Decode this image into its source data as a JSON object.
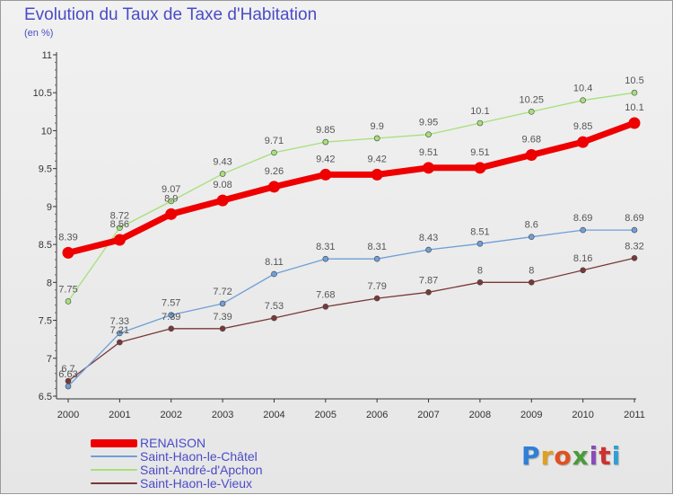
{
  "title": "Evolution du Taux de Taxe d'Habitation",
  "unit": "(en %)",
  "logo": {
    "text": "Proxiti",
    "colors": [
      "#2f7fd6",
      "#e0a020",
      "#e05020",
      "#4a9b3a",
      "#8a4ab8",
      "#d03030",
      "#2f9fd6"
    ]
  },
  "chart_data": {
    "type": "line",
    "x": [
      "2000",
      "2001",
      "2002",
      "2003",
      "2004",
      "2005",
      "2006",
      "2007",
      "2008",
      "2009",
      "2010",
      "2011"
    ],
    "ylim": [
      6.5,
      11
    ],
    "yticks": [
      "6.5",
      "7",
      "7.5",
      "8",
      "8.5",
      "9",
      "9.5",
      "10",
      "10.5",
      "11"
    ],
    "grid": false,
    "legend_position": "bottom-left",
    "series": [
      {
        "name": "RENAISON",
        "color": "#ee0000",
        "values": [
          8.39,
          8.56,
          8.9,
          9.08,
          9.26,
          9.42,
          9.42,
          9.51,
          9.51,
          9.68,
          9.85,
          10.1
        ],
        "labels": [
          "8.39",
          "8.56",
          "8.9",
          "9.08",
          "9.26",
          "9.42",
          "9.42",
          "9.51",
          "9.51",
          "9.68",
          "9.85",
          "10.1"
        ]
      },
      {
        "name": "Saint-Haon-le-Châtel",
        "color": "#6f9fd8",
        "values": [
          6.63,
          7.33,
          7.57,
          7.72,
          8.11,
          8.31,
          8.31,
          8.43,
          8.51,
          8.6,
          8.69,
          8.69
        ],
        "labels": [
          "6.63",
          "7.33",
          "7.57",
          "7.72",
          "8.11",
          "8.31",
          "8.31",
          "8.43",
          "8.51",
          "8.6",
          "8.69",
          "8.69"
        ]
      },
      {
        "name": "Saint-André-d'Apchon",
        "color": "#a6e07a",
        "values": [
          7.75,
          8.72,
          9.07,
          9.43,
          9.71,
          9.85,
          9.9,
          9.95,
          10.1,
          10.25,
          10.4,
          10.5
        ],
        "labels": [
          "7.75",
          "8.72",
          "9.07",
          "9.43",
          "9.71",
          "9.85",
          "9.9",
          "9.95",
          "10.1",
          "10.25",
          "10.4",
          "10.5"
        ]
      },
      {
        "name": "Saint-Haon-le-Vieux",
        "color": "#7a3838",
        "values": [
          6.7,
          7.21,
          7.39,
          7.39,
          7.53,
          7.68,
          7.79,
          7.87,
          8,
          8,
          8.16,
          8.32
        ],
        "labels": [
          "6.7",
          "7.21",
          "7.39",
          "7.39",
          "7.53",
          "7.68",
          "7.79",
          "7.87",
          "8",
          "8",
          "8.16",
          "8.32"
        ]
      }
    ]
  }
}
